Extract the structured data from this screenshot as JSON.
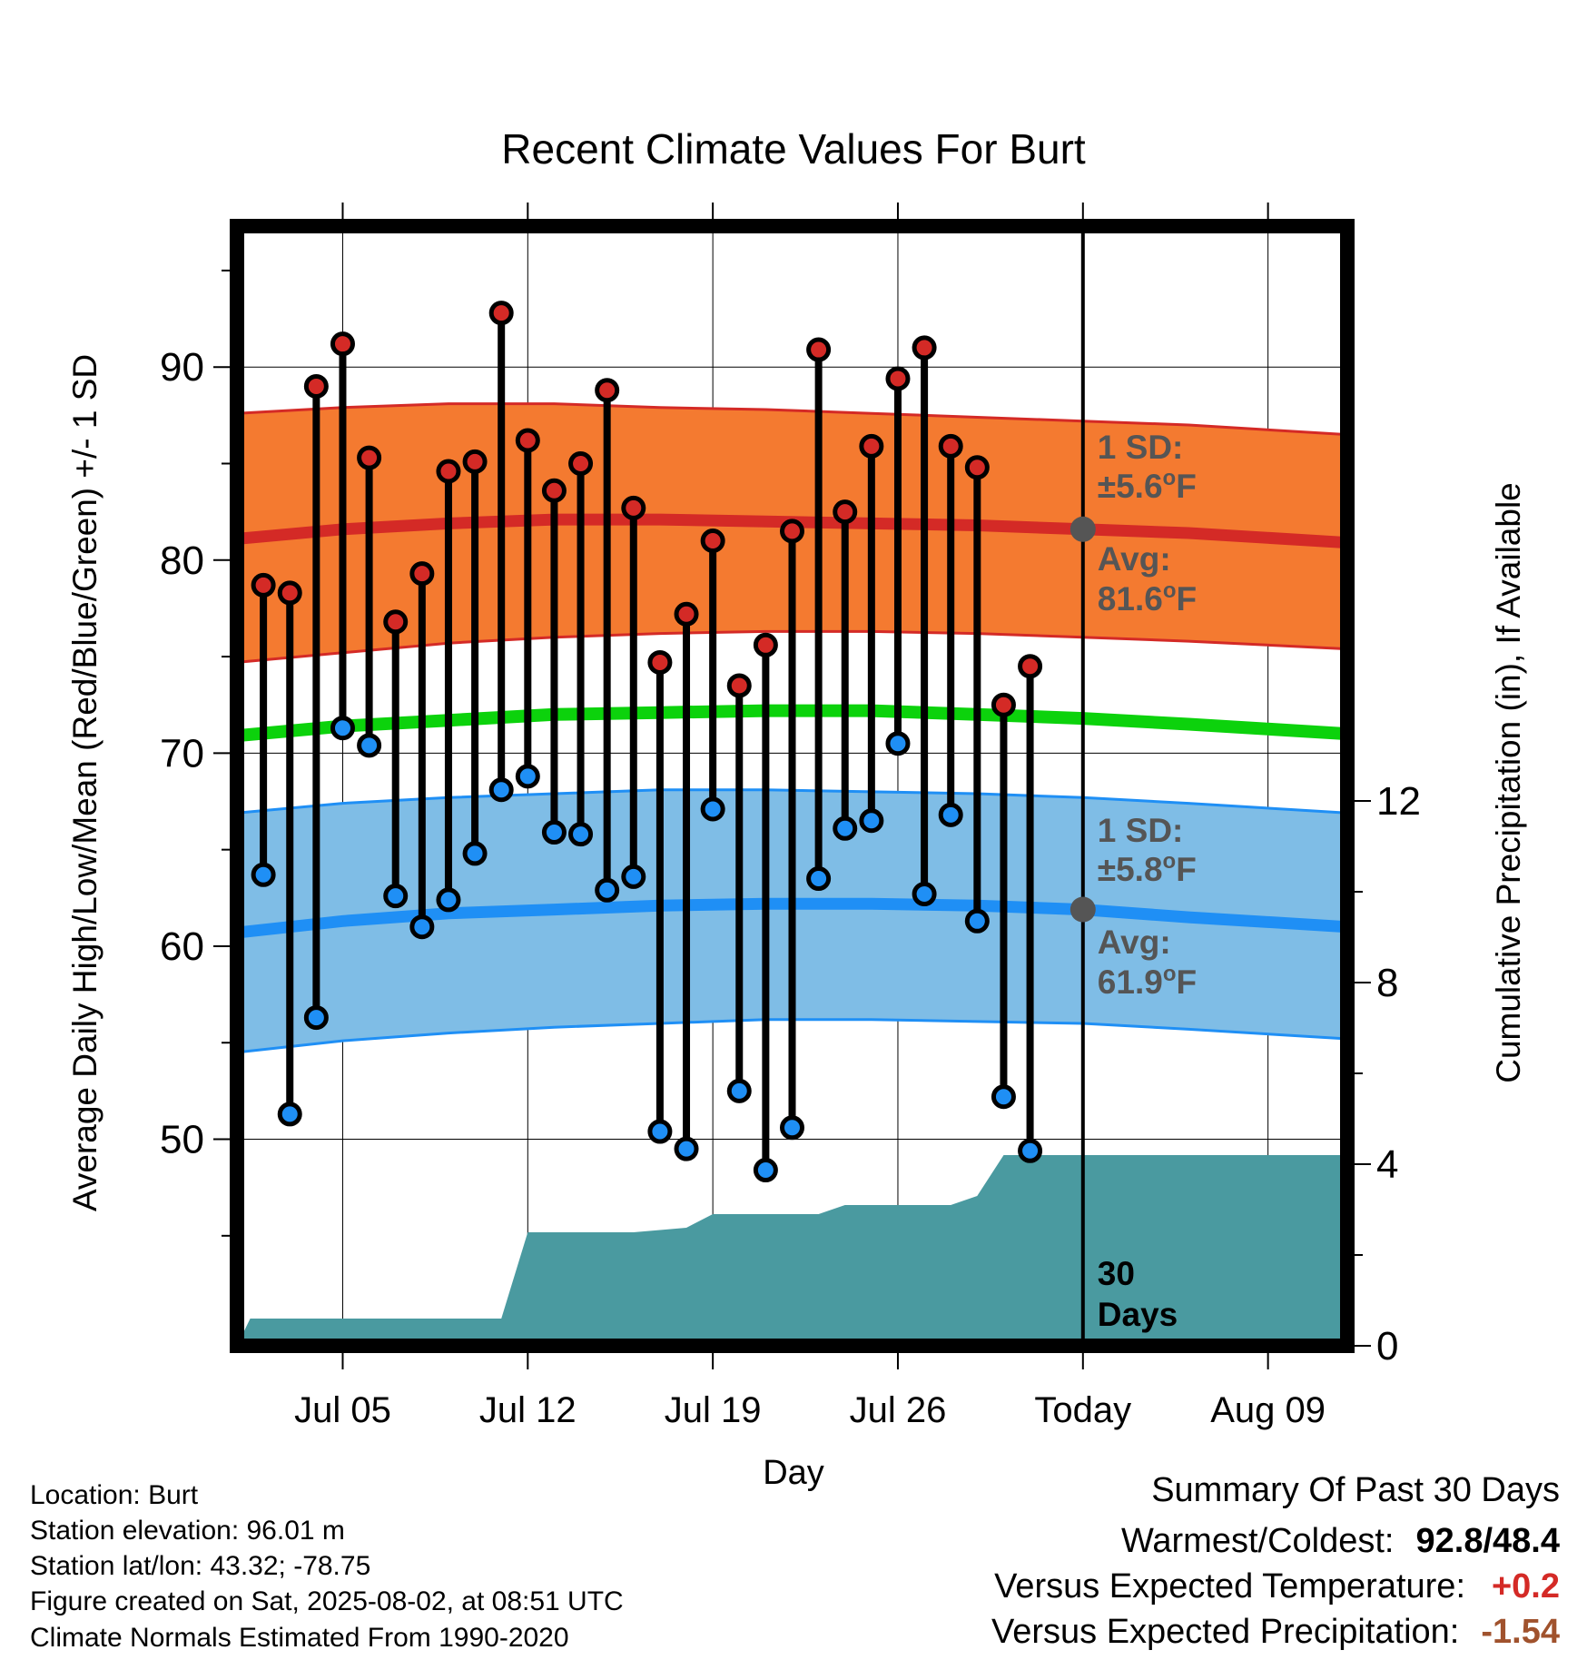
{
  "chart_data": {
    "type": "range-bar",
    "title": "Recent Climate Values For Burt",
    "xlabel": "Day",
    "ylabel": "Average Daily High/Low/Mean (Red/Blue/Green) +/- 1 SD",
    "y2label": "Cumulative Precipitation (in), If Available",
    "ylim": [
      39.3,
      97.3
    ],
    "y2lim": [
      0,
      24.66
    ],
    "yticks": [
      50,
      60,
      70,
      80,
      90
    ],
    "y2ticks": [
      0,
      4,
      8,
      12
    ],
    "xlim": [
      "2025-07-01",
      "2025-08-12"
    ],
    "xticks": [
      {
        "date": "2025-07-05",
        "label": "Jul 05"
      },
      {
        "date": "2025-07-12",
        "label": "Jul 12"
      },
      {
        "date": "2025-07-19",
        "label": "Jul 19"
      },
      {
        "date": "2025-07-26",
        "label": "Jul 26"
      },
      {
        "date": "2025-08-02",
        "label": "Today"
      },
      {
        "date": "2025-08-09",
        "label": "Aug 09"
      }
    ],
    "today": "2025-08-02",
    "daily": [
      {
        "date": "2025-07-02",
        "high": 78.7,
        "low": 63.7
      },
      {
        "date": "2025-07-03",
        "high": 78.3,
        "low": 51.3
      },
      {
        "date": "2025-07-04",
        "high": 89.0,
        "low": 56.3
      },
      {
        "date": "2025-07-05",
        "high": 91.2,
        "low": 71.3
      },
      {
        "date": "2025-07-06",
        "high": 85.3,
        "low": 70.4
      },
      {
        "date": "2025-07-07",
        "high": 76.8,
        "low": 62.6
      },
      {
        "date": "2025-07-08",
        "high": 79.3,
        "low": 61.0
      },
      {
        "date": "2025-07-09",
        "high": 84.6,
        "low": 62.4
      },
      {
        "date": "2025-07-10",
        "high": 85.1,
        "low": 64.8
      },
      {
        "date": "2025-07-11",
        "high": 92.8,
        "low": 68.1
      },
      {
        "date": "2025-07-12",
        "high": 86.2,
        "low": 68.8
      },
      {
        "date": "2025-07-13",
        "high": 83.6,
        "low": 65.9
      },
      {
        "date": "2025-07-14",
        "high": 85.0,
        "low": 65.8
      },
      {
        "date": "2025-07-15",
        "high": 88.8,
        "low": 62.9
      },
      {
        "date": "2025-07-16",
        "high": 82.7,
        "low": 63.6
      },
      {
        "date": "2025-07-17",
        "high": 74.7,
        "low": 50.4
      },
      {
        "date": "2025-07-18",
        "high": 77.2,
        "low": 49.5
      },
      {
        "date": "2025-07-19",
        "high": 81.0,
        "low": 67.1
      },
      {
        "date": "2025-07-20",
        "high": 73.5,
        "low": 52.5
      },
      {
        "date": "2025-07-21",
        "high": 75.6,
        "low": 48.4
      },
      {
        "date": "2025-07-22",
        "high": 81.5,
        "low": 50.6
      },
      {
        "date": "2025-07-23",
        "high": 90.9,
        "low": 63.5
      },
      {
        "date": "2025-07-24",
        "high": 82.5,
        "low": 66.1
      },
      {
        "date": "2025-07-25",
        "high": 85.9,
        "low": 66.5
      },
      {
        "date": "2025-07-26",
        "high": 89.4,
        "low": 70.5
      },
      {
        "date": "2025-07-27",
        "high": 91.0,
        "low": 62.7
      },
      {
        "date": "2025-07-28",
        "high": 85.9,
        "low": 66.8
      },
      {
        "date": "2025-07-29",
        "high": 84.8,
        "low": 61.3
      },
      {
        "date": "2025-07-30",
        "high": 72.5,
        "low": 52.2
      },
      {
        "date": "2025-07-31",
        "high": 74.5,
        "low": 49.4
      }
    ],
    "normals": {
      "dates": [
        "2025-07-01",
        "2025-07-05",
        "2025-07-09",
        "2025-07-13",
        "2025-07-17",
        "2025-07-21",
        "2025-07-25",
        "2025-07-29",
        "2025-08-02",
        "2025-08-06",
        "2025-08-12"
      ],
      "high_mean": [
        81.1,
        81.6,
        81.9,
        82.1,
        82.1,
        82.0,
        81.9,
        81.8,
        81.6,
        81.4,
        80.9
      ],
      "high_sd_upper": [
        87.6,
        87.9,
        88.1,
        88.1,
        87.9,
        87.8,
        87.6,
        87.4,
        87.2,
        87.0,
        86.5
      ],
      "high_sd_lower": [
        74.7,
        75.2,
        75.7,
        76.0,
        76.2,
        76.3,
        76.3,
        76.2,
        76.0,
        75.8,
        75.4
      ],
      "mean": [
        70.9,
        71.4,
        71.7,
        72.0,
        72.1,
        72.2,
        72.2,
        72.0,
        71.8,
        71.5,
        71.0
      ],
      "low_mean": [
        60.7,
        61.3,
        61.7,
        61.9,
        62.1,
        62.2,
        62.2,
        62.1,
        61.9,
        61.5,
        61.0
      ],
      "low_sd_upper": [
        66.9,
        67.4,
        67.7,
        67.9,
        68.1,
        68.1,
        68.0,
        67.9,
        67.7,
        67.4,
        66.9
      ],
      "low_sd_lower": [
        54.5,
        55.1,
        55.5,
        55.8,
        56.0,
        56.2,
        56.2,
        56.1,
        56.0,
        55.7,
        55.2
      ]
    },
    "precip": {
      "dates": [
        "2025-07-01",
        "2025-07-01.5",
        "2025-07-11",
        "2025-07-12",
        "2025-07-16",
        "2025-07-18",
        "2025-07-19",
        "2025-07-23",
        "2025-07-24",
        "2025-07-28",
        "2025-07-29",
        "2025-07-30",
        "2025-08-12"
      ],
      "values": [
        0,
        0.6,
        0.6,
        2.5,
        2.5,
        2.6,
        2.9,
        2.9,
        3.1,
        3.1,
        3.3,
        4.2,
        4.2
      ]
    },
    "annotations": {
      "high_sd": "1 SD:",
      "high_sd_val": "±5.6",
      "high_avg": "Avg:",
      "high_avg_val": "81.6",
      "high_avg_value": 81.6,
      "low_sd": "1 SD:",
      "low_sd_val": "±5.8",
      "low_avg": "Avg:",
      "low_avg_val": "61.9",
      "low_avg_value": 61.9,
      "deg_unit": "F",
      "precip_label_1": "30",
      "precip_label_2": "Days"
    },
    "colors": {
      "high_band": "#f47a30",
      "high_line": "#d42a26",
      "mean_line": "#0cd20c",
      "low_band": "#7fbde6",
      "low_line": "#1f8ff5",
      "precip": "#4a9aa0",
      "high_dot": "#d42a26",
      "low_dot": "#1f8ff5",
      "annotation": "#555555"
    }
  },
  "meta": {
    "location": "Location: Burt",
    "elevation": "Station elevation: 96.01 m",
    "latlon": "Station lat/lon: 43.32; -78.75",
    "created": "Figure created on Sat, 2025-08-02, at 08:51 UTC",
    "normals": "Climate Normals Estimated From 1990-2020"
  },
  "summary": {
    "title": "Summary Of Past 30 Days",
    "warm_label": "Warmest/Coldest:",
    "warm_high": "92.8",
    "warm_sep": "/",
    "warm_low": "48.4",
    "temp_label": "Versus Expected Temperature:",
    "temp_value": "+0.2",
    "temp_color": "#d42a26",
    "precip_label": "Versus Expected Precipitation:",
    "precip_value": "-1.54",
    "precip_color": "#a0522d"
  }
}
